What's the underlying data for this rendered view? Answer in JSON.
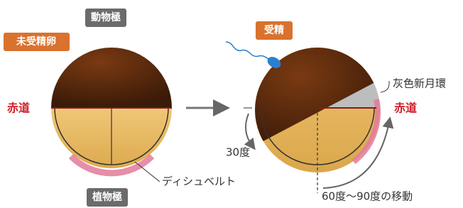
{
  "left_egg": {
    "animal_pole": "動物極",
    "title": "未受精卵",
    "equator": "赤道",
    "belt": "ディシュベルト",
    "vegetal_pole": "植物極"
  },
  "right_egg": {
    "title": "受精",
    "crescent": "灰色新月環",
    "equator": "赤道",
    "small_angle": "30度",
    "rotation": "60度〜90度の移動"
  }
}
